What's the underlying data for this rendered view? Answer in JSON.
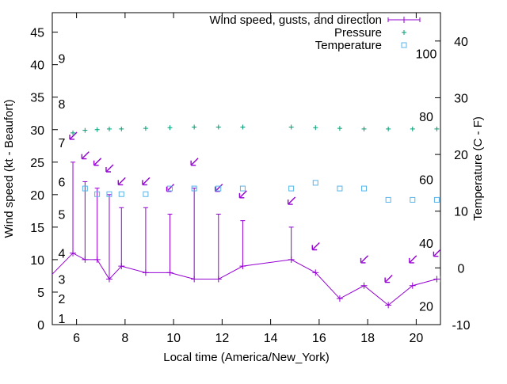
{
  "chart_data": {
    "type": "line",
    "xlabel": "Local time (America/New_York)",
    "ylabel": "Wind speed (kt - Beaufort)",
    "y2label": "Temperature (C - F)",
    "xlim": [
      5,
      21
    ],
    "ylim": [
      0,
      48
    ],
    "y2lim": [
      -10,
      45
    ],
    "x_ticks": [
      6,
      8,
      10,
      12,
      14,
      16,
      18,
      20
    ],
    "y_ticks": [
      0,
      5,
      10,
      15,
      20,
      25,
      30,
      35,
      40,
      45
    ],
    "y2_ticks": [
      -10,
      0,
      10,
      20,
      30,
      40
    ],
    "beaufort_labels": [
      {
        "label": "1",
        "y": 1
      },
      {
        "label": "2",
        "y": 4
      },
      {
        "label": "3",
        "y": 7
      },
      {
        "label": "4",
        "y": 11
      },
      {
        "label": "5",
        "y": 17
      },
      {
        "label": "6",
        "y": 22
      },
      {
        "label": "7",
        "y": 28
      },
      {
        "label": "8",
        "y": 34
      },
      {
        "label": "9",
        "y": 41
      }
    ],
    "fahrenheit_labels": [
      {
        "label": "20",
        "c": -6.7
      },
      {
        "label": "40",
        "c": 4.4
      },
      {
        "label": "60",
        "c": 15.6
      },
      {
        "label": "80",
        "c": 26.7
      },
      {
        "label": "100",
        "c": 37.8
      }
    ],
    "legend_position": "top-right",
    "series": [
      {
        "name": "Wind speed, gusts, and direction",
        "color": "#9400d3",
        "x": [
          4.8,
          5.85,
          6.35,
          6.85,
          7.35,
          7.85,
          8.85,
          9.85,
          10.85,
          11.85,
          12.85,
          14.85,
          15.85,
          16.85,
          17.85,
          18.85,
          19.85,
          20.85,
          21.0
        ],
        "values": [
          7,
          11,
          10,
          10,
          7,
          9,
          8,
          8,
          7,
          7,
          9,
          10,
          8,
          4,
          6,
          3,
          6,
          7,
          7
        ],
        "gusts": [
          null,
          25,
          22,
          21,
          20,
          18,
          18,
          17,
          21,
          17,
          16,
          15,
          null,
          null,
          null,
          null,
          null,
          null,
          null
        ],
        "direction_points": [
          {
            "x": 5.85,
            "y": 29
          },
          {
            "x": 6.35,
            "y": 26
          },
          {
            "x": 6.85,
            "y": 25
          },
          {
            "x": 7.35,
            "y": 24
          },
          {
            "x": 7.85,
            "y": 22
          },
          {
            "x": 8.85,
            "y": 22
          },
          {
            "x": 9.85,
            "y": 21
          },
          {
            "x": 10.85,
            "y": 25
          },
          {
            "x": 11.85,
            "y": 21
          },
          {
            "x": 12.85,
            "y": 20
          },
          {
            "x": 14.85,
            "y": 19
          },
          {
            "x": 15.85,
            "y": 12
          },
          {
            "x": 17.85,
            "y": 10
          },
          {
            "x": 18.85,
            "y": 7
          },
          {
            "x": 19.85,
            "y": 10
          },
          {
            "x": 20.85,
            "y": 11
          }
        ]
      },
      {
        "name": "Pressure",
        "color": "#009e73",
        "x": [
          5.85,
          6.35,
          6.85,
          7.35,
          7.85,
          8.85,
          9.85,
          10.85,
          11.85,
          12.85,
          14.85,
          15.85,
          16.85,
          17.85,
          18.85,
          19.85,
          20.85
        ],
        "values": [
          29.5,
          29.9,
          30.0,
          30.1,
          30.1,
          30.2,
          30.3,
          30.4,
          30.4,
          30.4,
          30.4,
          30.3,
          30.2,
          30.1,
          30.1,
          30.1,
          30.1
        ]
      },
      {
        "name": "Temperature",
        "color": "#56b4e9",
        "axis": "y2",
        "x": [
          6.35,
          6.85,
          7.35,
          7.85,
          8.85,
          9.85,
          10.85,
          11.85,
          12.85,
          14.85,
          15.85,
          16.85,
          17.85,
          18.85,
          19.85,
          20.85
        ],
        "values": [
          14,
          13,
          13,
          13,
          13,
          14,
          14,
          14,
          14,
          14,
          15,
          14,
          14,
          12,
          12,
          12
        ]
      }
    ]
  }
}
